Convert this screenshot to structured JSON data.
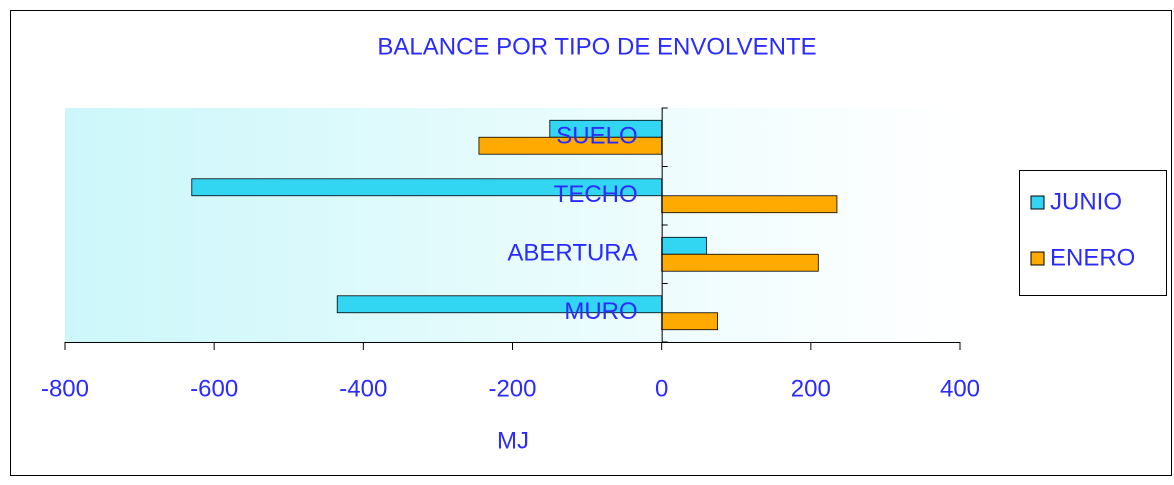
{
  "chart_data": {
    "type": "bar",
    "orientation": "horizontal",
    "title": "BALANCE POR TIPO DE ENVOLVENTE",
    "x_label": "MJ",
    "categories": [
      "MURO",
      "ABERTURA",
      "TECHO",
      "SUELO"
    ],
    "series": [
      {
        "name": "JUNIO",
        "color": "#33d6f2",
        "values": [
          -435,
          60,
          -630,
          -150
        ]
      },
      {
        "name": "ENERO",
        "color": "#ffaa00",
        "values": [
          75,
          210,
          235,
          -245
        ]
      }
    ],
    "xlim": [
      -800,
      400
    ],
    "xticks": [
      -800,
      -600,
      -400,
      -200,
      0,
      200,
      400
    ],
    "legend": "right"
  }
}
